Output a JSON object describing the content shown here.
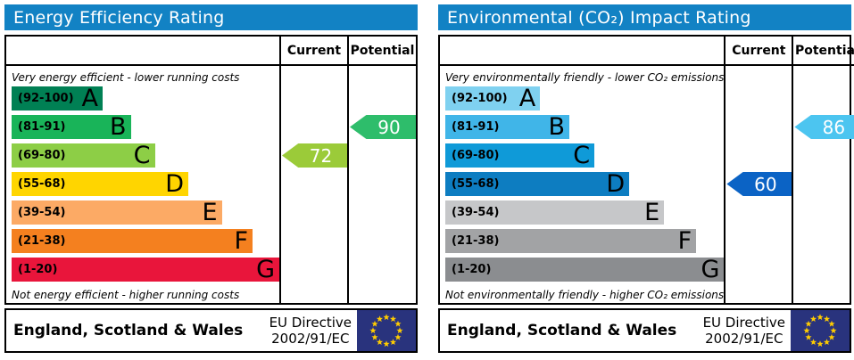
{
  "theme": {
    "header_bg": "#1282c4",
    "header_text": "#ffffff",
    "border": "#000000",
    "flag_bg": "#29337d",
    "flag_star": "#ffcc00"
  },
  "chart_data": [
    {
      "type": "bar",
      "title": "Energy Efficiency Rating",
      "orientation": "horizontal",
      "categories": [
        "A (92-100)",
        "B (81-91)",
        "C (69-80)",
        "D (55-68)",
        "E (39-54)",
        "F (21-38)",
        "G (1-20)"
      ],
      "band_colors": [
        "#008054",
        "#19b459",
        "#8dce46",
        "#ffd500",
        "#fcaa65",
        "#f4801f",
        "#e9153b"
      ],
      "series": [
        {
          "name": "Current",
          "value": 72,
          "band": "C"
        },
        {
          "name": "Potential",
          "value": 90,
          "band": "B"
        }
      ],
      "xlim": [
        1,
        100
      ],
      "top_note": "Very energy efficient - lower running costs",
      "bottom_note": "Not energy efficient - higher running costs"
    },
    {
      "type": "bar",
      "title": "Environmental (CO₂) Impact Rating",
      "orientation": "horizontal",
      "categories": [
        "A (92-100)",
        "B (81-91)",
        "C (69-80)",
        "D (55-68)",
        "E (39-54)",
        "F (21-38)",
        "G (1-20)"
      ],
      "band_colors": [
        "#7fd1f0",
        "#40b5e8",
        "#0f9ad8",
        "#0d7dc1",
        "#c6c7c9",
        "#a2a3a5",
        "#8b8d90"
      ],
      "series": [
        {
          "name": "Current",
          "value": 60,
          "band": "D"
        },
        {
          "name": "Potential",
          "value": 86,
          "band": "B"
        }
      ],
      "xlim": [
        1,
        100
      ],
      "top_note": "Very environmentally friendly - lower CO₂ emissions",
      "bottom_note": "Not environmentally friendly - higher CO₂ emissions"
    }
  ],
  "charts": [
    {
      "title": "Energy Efficiency Rating",
      "col_current": "Current",
      "col_potential": "Potential",
      "top_note": "Very energy efficient - lower running costs",
      "bottom_note": "Not energy efficient - higher running costs",
      "bands": [
        {
          "range": "(92-100)",
          "letter": "A",
          "color": "#008054",
          "width_pct": 34
        },
        {
          "range": "(81-91)",
          "letter": "B",
          "color": "#19b459",
          "width_pct": 44.5
        },
        {
          "range": "(69-80)",
          "letter": "C",
          "color": "#8dce46",
          "width_pct": 53.5
        },
        {
          "range": "(55-68)",
          "letter": "D",
          "color": "#ffd500",
          "width_pct": 66
        },
        {
          "range": "(39-54)",
          "letter": "E",
          "color": "#fcaa65",
          "width_pct": 78.5
        },
        {
          "range": "(21-38)",
          "letter": "F",
          "color": "#f4801f",
          "width_pct": 90
        },
        {
          "range": "(1-20)",
          "letter": "G",
          "color": "#e9153b",
          "width_pct": 100
        }
      ],
      "current": {
        "value": "72",
        "band_index": 2,
        "color": "#9bcb39"
      },
      "potential": {
        "value": "90",
        "band_index": 1,
        "color": "#2ebd6b"
      },
      "footer": {
        "region": "England, Scotland & Wales",
        "directive_line1": "EU Directive",
        "directive_line2": "2002/91/EC"
      }
    },
    {
      "title": "Environmental (CO₂) Impact Rating",
      "col_current": "Current",
      "col_potential": "Potential",
      "top_note": "Very environmentally friendly - lower CO₂ emissions",
      "bottom_note": "Not environmentally friendly - higher CO₂ emissions",
      "bands": [
        {
          "range": "(92-100)",
          "letter": "A",
          "color": "#7fd1f0",
          "width_pct": 34
        },
        {
          "range": "(81-91)",
          "letter": "B",
          "color": "#40b5e8",
          "width_pct": 44.5
        },
        {
          "range": "(69-80)",
          "letter": "C",
          "color": "#0f9ad8",
          "width_pct": 53.5
        },
        {
          "range": "(55-68)",
          "letter": "D",
          "color": "#0d7dc1",
          "width_pct": 66
        },
        {
          "range": "(39-54)",
          "letter": "E",
          "color": "#c6c7c9",
          "width_pct": 78.5
        },
        {
          "range": "(21-38)",
          "letter": "F",
          "color": "#a2a3a5",
          "width_pct": 90
        },
        {
          "range": "(1-20)",
          "letter": "G",
          "color": "#8b8d90",
          "width_pct": 100
        }
      ],
      "current": {
        "value": "60",
        "band_index": 3,
        "color": "#0b63c5"
      },
      "potential": {
        "value": "86",
        "band_index": 1,
        "color": "#4cc5f0"
      },
      "footer": {
        "region": "England, Scotland & Wales",
        "directive_line1": "EU Directive",
        "directive_line2": "2002/91/EC"
      }
    }
  ]
}
